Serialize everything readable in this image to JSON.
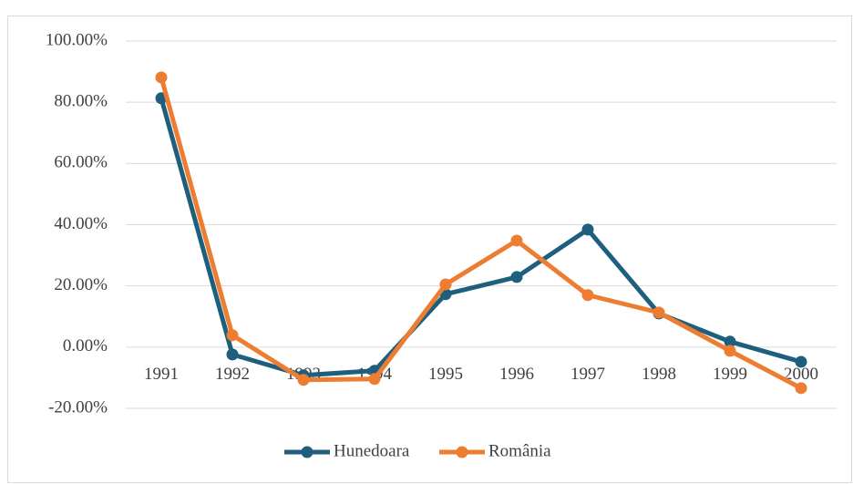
{
  "chart_data": {
    "type": "line",
    "categories": [
      "1991",
      "1992",
      "1993",
      "1994",
      "1995",
      "1996",
      "1997",
      "1998",
      "1999",
      "2000"
    ],
    "series": [
      {
        "name": "Hunedoara",
        "color": "#1f5f7e",
        "values": [
          81.3,
          -2.4,
          -9.2,
          -7.7,
          17.3,
          22.9,
          38.4,
          11.0,
          1.8,
          -4.8
        ]
      },
      {
        "name": "România",
        "color": "#ed7d31",
        "values": [
          88.1,
          3.9,
          -10.7,
          -10.4,
          20.5,
          34.8,
          17.0,
          11.3,
          -1.2,
          -13.4
        ]
      }
    ],
    "ylim": [
      -20,
      100
    ],
    "yticks": [
      {
        "value": -20,
        "label": "-20.00%"
      },
      {
        "value": 0,
        "label": "0.00%"
      },
      {
        "value": 20,
        "label": "20.00%"
      },
      {
        "value": 40,
        "label": "40.00%"
      },
      {
        "value": 60,
        "label": "60.00%"
      },
      {
        "value": 80,
        "label": "80.00%"
      },
      {
        "value": 100,
        "label": "100.00%"
      }
    ],
    "grid": true,
    "legend": "bottom"
  }
}
